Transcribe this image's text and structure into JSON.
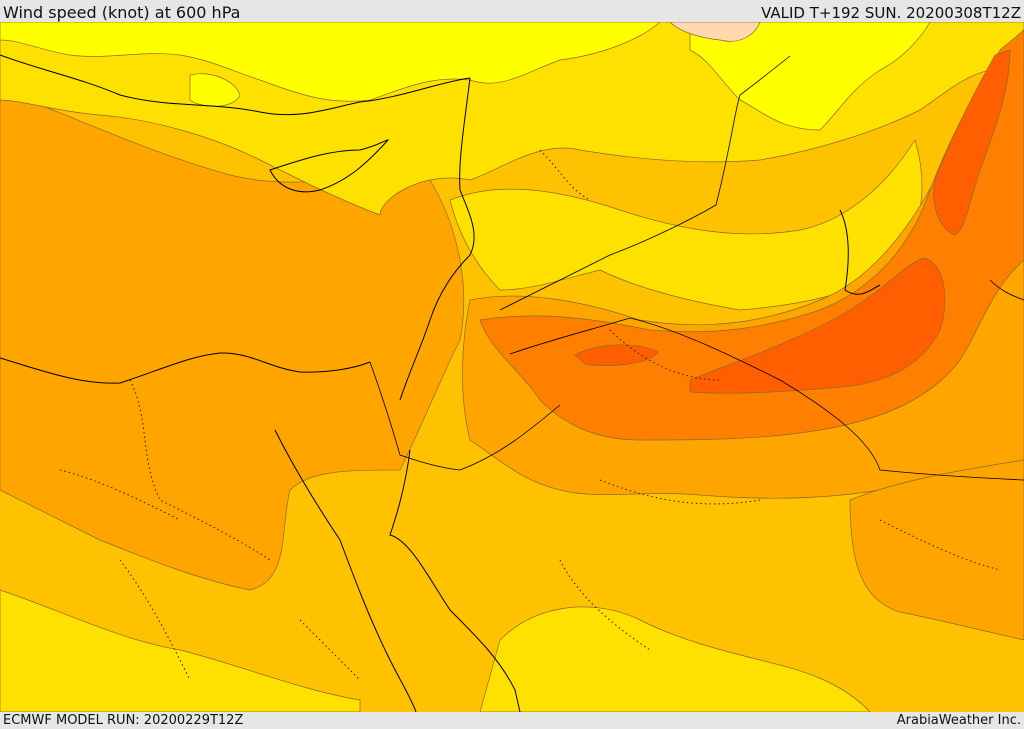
{
  "header": {
    "title": "Wind speed (knot) at 600 hPa",
    "valid": "VALID T+192 SUN. 20200308T12Z"
  },
  "footer": {
    "model_run": "ECMWF MODEL RUN: 20200229T12Z",
    "credit": "ArabiaWeather Inc."
  },
  "map": {
    "field": "wind speed 600 hPa",
    "color_levels": [
      "#ffff00",
      "#ffe100",
      "#ffc200",
      "#ffa500",
      "#ff8000",
      "#ff5f00",
      "#ffd8b0"
    ],
    "features": [
      "coastlines",
      "country borders",
      "region borders (dotted)",
      "filled contours"
    ]
  }
}
